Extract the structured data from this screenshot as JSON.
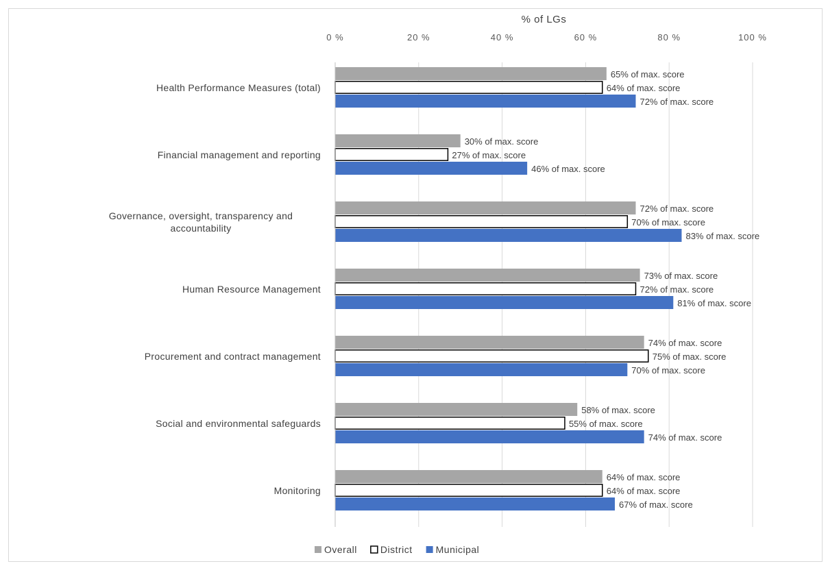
{
  "chart_data": {
    "type": "bar",
    "orientation": "horizontal",
    "xlabel": "% of LGs",
    "xlim": [
      0,
      100
    ],
    "x_ticks": [
      "0 %",
      "20 %",
      "40 %",
      "60 %",
      "80 %",
      "100 %"
    ],
    "categories": [
      "Health Performance Measures (total)",
      "Financial management and reporting",
      "Governance, oversight, transparency and accountability",
      "Human Resource Management",
      "Procurement and contract management",
      "Social and environmental safeguards",
      "Monitoring"
    ],
    "series": [
      {
        "name": "Overall",
        "color": "#a6a6a6",
        "values": [
          65,
          30,
          72,
          73,
          74,
          58,
          64
        ],
        "labels": [
          "65% of max. score",
          "30% of max. score",
          "72% of max. score",
          "73% of max. score",
          "74% of max. score",
          "58% of max. score",
          "64% of max. score"
        ]
      },
      {
        "name": "District",
        "color": "#ffffff",
        "stroke": "#000000",
        "values": [
          64,
          27,
          70,
          72,
          75,
          55,
          64
        ],
        "labels": [
          "64% of max. score",
          "27% of max. score",
          "70% of max. score",
          "72% of max. score",
          "75% of max. score",
          "55% of max. score",
          "64% of max. score"
        ]
      },
      {
        "name": "Municipal",
        "color": "#4472c4",
        "values": [
          72,
          46,
          83,
          81,
          70,
          74,
          67
        ],
        "labels": [
          "72% of max. score",
          "46% of max. score",
          "83% of max. score",
          "81% of max. score",
          "70% of max. score",
          "74% of max. score",
          "67% of max. score"
        ]
      }
    ],
    "legend_position": "bottom",
    "grid": true
  }
}
